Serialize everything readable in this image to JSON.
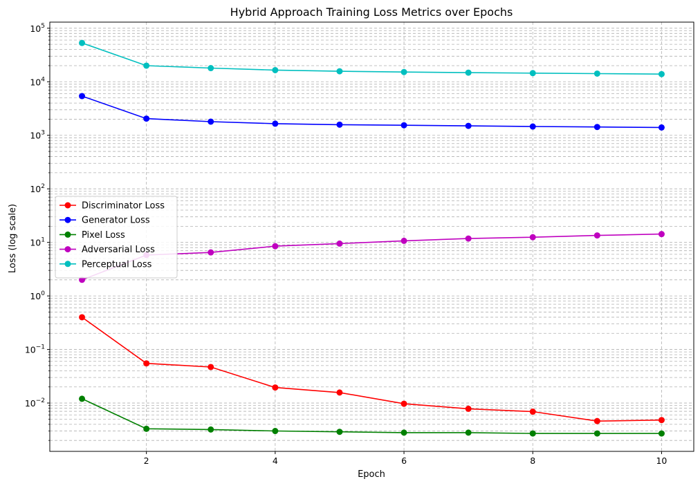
{
  "chart_data": {
    "type": "line",
    "title": "Hybrid Approach Training Loss Metrics over Epochs",
    "xlabel": "Epoch",
    "ylabel": "Loss (log scale)",
    "yscale": "log",
    "grid": "both, dashed, incl. minor",
    "legend_position": "center-left",
    "xlim": [
      0.5,
      10.5
    ],
    "ylim": [
      0.00125,
      130000
    ],
    "x_ticks": [
      2,
      4,
      6,
      8,
      10
    ],
    "x_tick_labels": [
      "2",
      "4",
      "6",
      "8",
      "10"
    ],
    "y_ticks": [
      {
        "base": "10",
        "exp": "−2",
        "value": 0.01
      },
      {
        "base": "10",
        "exp": "−1",
        "value": 0.1
      },
      {
        "base": "10",
        "exp": "0",
        "value": 1
      },
      {
        "base": "10",
        "exp": "1",
        "value": 10
      },
      {
        "base": "10",
        "exp": "2",
        "value": 100
      },
      {
        "base": "10",
        "exp": "3",
        "value": 1000
      },
      {
        "base": "10",
        "exp": "4",
        "value": 10000
      },
      {
        "base": "10",
        "exp": "5",
        "value": 100000
      }
    ],
    "x": [
      1,
      2,
      3,
      4,
      5,
      6,
      7,
      8,
      9,
      10
    ],
    "series": [
      {
        "name": "Discriminator Loss",
        "color": "#ff0000",
        "values": [
          0.4,
          0.055,
          0.047,
          0.0195,
          0.0157,
          0.0097,
          0.0078,
          0.0069,
          0.0046,
          0.0048
        ]
      },
      {
        "name": "Generator Loss",
        "color": "#0000ff",
        "values": [
          5400,
          2050,
          1800,
          1650,
          1580,
          1540,
          1500,
          1460,
          1430,
          1400
        ]
      },
      {
        "name": "Pixel Loss",
        "color": "#008000",
        "values": [
          0.012,
          0.0033,
          0.0032,
          0.003,
          0.0029,
          0.0028,
          0.0028,
          0.0027,
          0.0027,
          0.0027
        ]
      },
      {
        "name": "Adversarial Loss",
        "color": "#bf00bf",
        "values": [
          2.0,
          5.8,
          6.5,
          8.5,
          9.5,
          10.7,
          11.8,
          12.5,
          13.5,
          14.3
        ]
      },
      {
        "name": "Perceptual Loss",
        "color": "#00bfbf",
        "values": [
          53000,
          20000,
          18000,
          16500,
          15700,
          15200,
          14800,
          14500,
          14200,
          13900
        ]
      }
    ]
  }
}
